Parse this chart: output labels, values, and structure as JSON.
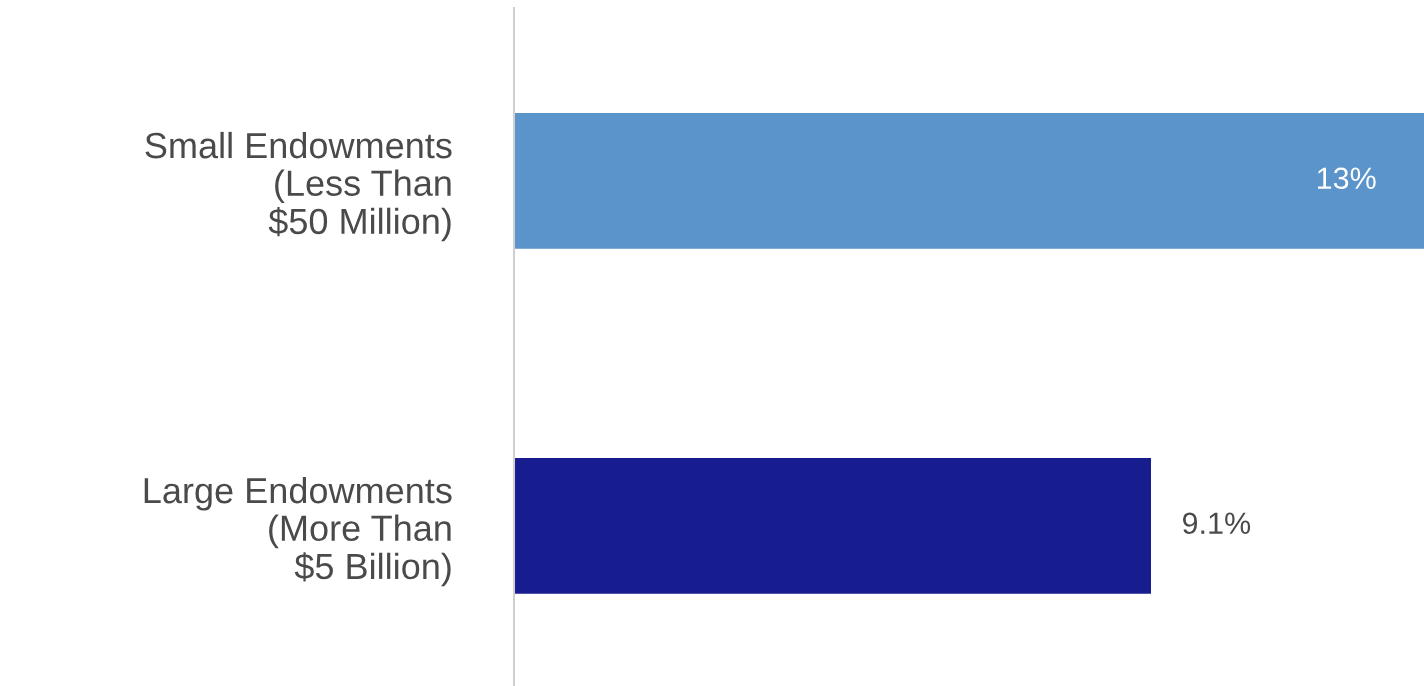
{
  "chart_data": {
    "type": "bar",
    "orientation": "horizontal",
    "categories": [
      "Small Endowments\n(Less Than\n$50 Million)",
      "Large Endowments\n(More Than\n$5 Billion)"
    ],
    "values": [
      13,
      9.1
    ],
    "value_labels": [
      "13%",
      "9.1%"
    ],
    "colors": [
      "#5b93cb",
      "#171c8f"
    ],
    "grid": false
  }
}
